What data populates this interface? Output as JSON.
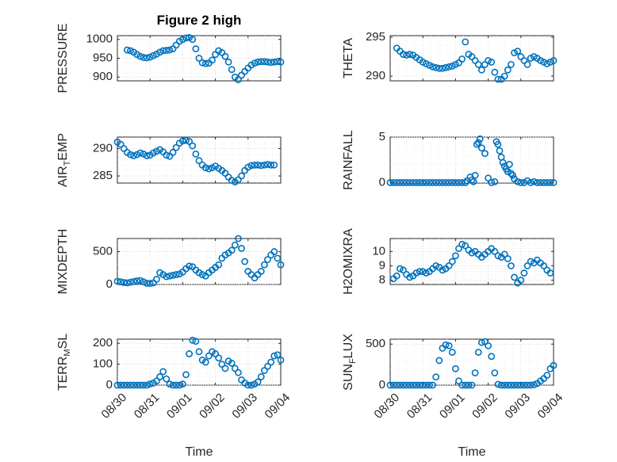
{
  "chart_data": [
    {
      "type": "scatter",
      "title": "Figure 2 high",
      "ylabel": "PRESSURE",
      "xlabel": "",
      "ylim": [
        890,
        1010
      ],
      "yticks": [
        900,
        950,
        1000
      ],
      "xlim": [
        0,
        5
      ],
      "xticks": [
        "08/30",
        "08/31",
        "09/01",
        "09/02",
        "09/03",
        "09/04"
      ],
      "grid": true,
      "color": "#0072BD",
      "series": [
        {
          "x": [
            0.3,
            0.4,
            0.5,
            0.6,
            0.7,
            0.8,
            0.9,
            1.0,
            1.1,
            1.2,
            1.3,
            1.4,
            1.5,
            1.6,
            1.7,
            1.8,
            1.9,
            2.0,
            2.1,
            2.2,
            2.3,
            2.4,
            2.5,
            2.6,
            2.7,
            2.8,
            2.9,
            3.0,
            3.1,
            3.2,
            3.3,
            3.4,
            3.5,
            3.6,
            3.7,
            3.8,
            3.9,
            4.0,
            4.1,
            4.2,
            4.3,
            4.4,
            4.5,
            4.6,
            4.7,
            4.8,
            4.9,
            5.0
          ],
          "y": [
            972,
            970,
            966,
            960,
            955,
            952,
            951,
            953,
            957,
            961,
            966,
            970,
            971,
            972,
            975,
            985,
            995,
            1000,
            1004,
            1005,
            1000,
            975,
            950,
            938,
            936,
            937,
            945,
            960,
            970,
            965,
            955,
            940,
            920,
            900,
            893,
            905,
            915,
            924,
            932,
            937,
            940,
            941,
            941,
            940,
            939,
            940,
            941,
            940
          ]
        }
      ]
    },
    {
      "type": "scatter",
      "title": "",
      "ylabel": "THETA",
      "xlabel": "",
      "ylim": [
        289.4,
        295.2
      ],
      "yticks": [
        290,
        295
      ],
      "xlim": [
        0,
        5
      ],
      "xticks": [
        "08/30",
        "08/31",
        "09/01",
        "09/02",
        "09/03",
        "09/04"
      ],
      "grid": true,
      "color": "#0072BD",
      "series": [
        {
          "x": [
            0.2,
            0.3,
            0.4,
            0.5,
            0.6,
            0.7,
            0.8,
            0.9,
            1.0,
            1.1,
            1.2,
            1.3,
            1.4,
            1.5,
            1.6,
            1.7,
            1.8,
            1.9,
            2.0,
            2.1,
            2.2,
            2.3,
            2.4,
            2.5,
            2.6,
            2.7,
            2.8,
            2.9,
            3.0,
            3.1,
            3.2,
            3.3,
            3.4,
            3.5,
            3.6,
            3.7,
            3.8,
            3.9,
            4.0,
            4.1,
            4.2,
            4.3,
            4.4,
            4.5,
            4.6,
            4.7,
            4.8,
            4.9,
            5.0
          ],
          "y": [
            293.6,
            293.2,
            292.8,
            292.7,
            292.8,
            292.7,
            292.4,
            292.1,
            291.8,
            291.6,
            291.4,
            291.2,
            291.1,
            291.0,
            291.0,
            291.1,
            291.2,
            291.3,
            291.5,
            291.7,
            292.2,
            294.4,
            292.8,
            292.5,
            292.0,
            291.5,
            290.8,
            291.5,
            292.0,
            291.8,
            290.5,
            289.6,
            289.6,
            290.0,
            290.8,
            291.5,
            293.0,
            293.2,
            292.5,
            292.0,
            291.5,
            292.3,
            292.5,
            292.3,
            292.0,
            291.8,
            291.6,
            291.8,
            292.0
          ]
        }
      ]
    },
    {
      "type": "scatter",
      "title": "",
      "ylabel_main": "AIR",
      "ylabel_sub": "T",
      "ylabel_rest": "EMP",
      "xlabel": "",
      "ylim": [
        283.7,
        292.1
      ],
      "yticks": [
        285,
        290
      ],
      "xlim": [
        0,
        5
      ],
      "xticks": [
        "08/30",
        "08/31",
        "09/01",
        "09/02",
        "09/03",
        "09/04"
      ],
      "grid": true,
      "color": "#0072BD",
      "series": [
        {
          "x": [
            0.0,
            0.1,
            0.2,
            0.3,
            0.4,
            0.5,
            0.6,
            0.7,
            0.8,
            0.9,
            1.0,
            1.1,
            1.2,
            1.3,
            1.4,
            1.5,
            1.6,
            1.7,
            1.8,
            1.9,
            2.0,
            2.1,
            2.2,
            2.3,
            2.4,
            2.5,
            2.6,
            2.7,
            2.8,
            2.9,
            3.0,
            3.1,
            3.2,
            3.3,
            3.4,
            3.5,
            3.6,
            3.7,
            3.8,
            3.9,
            4.0,
            4.1,
            4.2,
            4.3,
            4.4,
            4.5,
            4.6,
            4.7,
            4.8
          ],
          "y": [
            291.2,
            290.8,
            290.0,
            289.3,
            288.9,
            288.7,
            288.9,
            289.2,
            289.0,
            288.7,
            288.8,
            289.2,
            289.5,
            289.8,
            289.4,
            288.8,
            288.6,
            289.3,
            290.2,
            291.0,
            291.4,
            291.5,
            291.3,
            290.5,
            289.0,
            287.8,
            287.0,
            286.5,
            286.3,
            286.5,
            286.8,
            286.4,
            286.0,
            285.5,
            284.8,
            284.2,
            283.9,
            284.3,
            285.0,
            286.0,
            286.6,
            286.9,
            287.0,
            287.0,
            286.9,
            287.0,
            287.1,
            287.0,
            287.0
          ]
        }
      ]
    },
    {
      "type": "scatter",
      "title": "",
      "ylabel": "RAINFALL",
      "xlabel": "",
      "ylim": [
        -0.05,
        5.0
      ],
      "yticks": [
        0,
        5
      ],
      "xlim": [
        0,
        5
      ],
      "xticks": [
        "08/30",
        "08/31",
        "09/01",
        "09/02",
        "09/03",
        "09/04"
      ],
      "grid": true,
      "color": "#0072BD",
      "series": [
        {
          "x": [
            0.0,
            0.1,
            0.2,
            0.3,
            0.4,
            0.5,
            0.6,
            0.7,
            0.8,
            0.9,
            1.0,
            1.1,
            1.2,
            1.3,
            1.4,
            1.5,
            1.6,
            1.7,
            1.8,
            1.9,
            2.0,
            2.1,
            2.2,
            2.3,
            2.35,
            2.45,
            2.5,
            2.55,
            2.6,
            2.65,
            2.7,
            2.75,
            2.8,
            2.9,
            3.0,
            3.1,
            3.2,
            3.25,
            3.3,
            3.35,
            3.4,
            3.45,
            3.5,
            3.55,
            3.6,
            3.65,
            3.7,
            3.75,
            3.8,
            3.9,
            4.0,
            4.1,
            4.2,
            4.3,
            4.4,
            4.5,
            4.6,
            4.7,
            4.8,
            4.9,
            5.0
          ],
          "y": [
            0,
            0,
            0,
            0,
            0,
            0,
            0,
            0,
            0,
            0,
            0,
            0,
            0,
            0,
            0,
            0,
            0,
            0,
            0,
            0,
            0,
            0,
            0,
            0,
            0.2,
            0.6,
            0.3,
            0.1,
            0.8,
            4.2,
            4.4,
            4.8,
            3.8,
            3.2,
            0.5,
            0,
            0.1,
            4.5,
            4.2,
            3.5,
            2.8,
            2.2,
            1.8,
            1.5,
            1.2,
            2.0,
            1.0,
            0.8,
            0.4,
            0.1,
            0,
            0,
            0.2,
            0,
            0.1,
            0,
            0,
            0,
            0,
            0,
            0
          ]
        }
      ]
    },
    {
      "type": "scatter",
      "title": "",
      "ylabel": "MIXDEPTH",
      "xlabel": "",
      "ylim": [
        0,
        700
      ],
      "yticks": [
        0,
        500
      ],
      "xlim": [
        0,
        5
      ],
      "xticks": [
        "08/30",
        "08/31",
        "09/01",
        "09/02",
        "09/03",
        "09/04"
      ],
      "grid": true,
      "color": "#0072BD",
      "series": [
        {
          "x": [
            0.0,
            0.1,
            0.2,
            0.3,
            0.4,
            0.5,
            0.6,
            0.7,
            0.8,
            0.9,
            1.0,
            1.1,
            1.2,
            1.3,
            1.4,
            1.5,
            1.6,
            1.7,
            1.8,
            1.9,
            2.0,
            2.1,
            2.2,
            2.3,
            2.4,
            2.5,
            2.6,
            2.7,
            2.8,
            2.9,
            3.0,
            3.1,
            3.2,
            3.3,
            3.4,
            3.5,
            3.6,
            3.7,
            3.8,
            3.9,
            4.0,
            4.1,
            4.2,
            4.3,
            4.4,
            4.5,
            4.6,
            4.7,
            4.8,
            4.9,
            5.0
          ],
          "y": [
            50,
            40,
            30,
            25,
            35,
            45,
            55,
            60,
            40,
            20,
            15,
            25,
            80,
            180,
            150,
            120,
            130,
            140,
            150,
            160,
            190,
            240,
            280,
            270,
            220,
            180,
            150,
            130,
            180,
            220,
            260,
            300,
            400,
            450,
            480,
            520,
            600,
            700,
            550,
            350,
            200,
            150,
            100,
            150,
            200,
            300,
            380,
            450,
            500,
            400,
            300
          ]
        }
      ]
    },
    {
      "type": "scatter",
      "title": "",
      "ylabel": "H2OMIXRA",
      "xlabel": "",
      "ylim": [
        7.7,
        10.9
      ],
      "yticks": [
        8,
        9,
        10
      ],
      "xlim": [
        0,
        5
      ],
      "xticks": [
        "08/30",
        "08/31",
        "09/01",
        "09/02",
        "09/03",
        "09/04"
      ],
      "grid": true,
      "color": "#0072BD",
      "series": [
        {
          "x": [
            0.1,
            0.2,
            0.3,
            0.4,
            0.5,
            0.6,
            0.7,
            0.8,
            0.9,
            1.0,
            1.1,
            1.2,
            1.3,
            1.4,
            1.5,
            1.6,
            1.7,
            1.8,
            1.9,
            2.0,
            2.1,
            2.2,
            2.3,
            2.4,
            2.5,
            2.6,
            2.7,
            2.8,
            2.9,
            3.0,
            3.1,
            3.2,
            3.3,
            3.4,
            3.5,
            3.6,
            3.7,
            3.8,
            3.9,
            4.0,
            4.1,
            4.2,
            4.3,
            4.4,
            4.5,
            4.6,
            4.7,
            4.8,
            4.9
          ],
          "y": [
            8.1,
            8.3,
            8.8,
            8.7,
            8.4,
            8.2,
            8.3,
            8.5,
            8.6,
            8.6,
            8.5,
            8.6,
            8.8,
            9.0,
            8.9,
            8.7,
            8.8,
            9.0,
            9.3,
            9.7,
            10.2,
            10.5,
            10.4,
            10.1,
            9.9,
            10.0,
            9.8,
            9.6,
            9.8,
            10.0,
            10.2,
            10.0,
            9.7,
            9.6,
            9.8,
            9.5,
            9.0,
            8.2,
            7.8,
            8.0,
            8.5,
            9.0,
            9.3,
            9.2,
            9.4,
            9.2,
            9.0,
            8.7,
            8.5
          ]
        }
      ]
    },
    {
      "type": "scatter",
      "title": "",
      "ylabel_main": "TERR",
      "ylabel_sub": "M",
      "ylabel_rest": "SL",
      "xlabel": "Time",
      "ylim": [
        0,
        220
      ],
      "yticks": [
        0,
        100,
        200
      ],
      "xlim": [
        0,
        5
      ],
      "xticks": [
        "08/30",
        "08/31",
        "09/01",
        "09/02",
        "09/03",
        "09/04"
      ],
      "grid": true,
      "color": "#0072BD",
      "series": [
        {
          "x": [
            0.0,
            0.1,
            0.2,
            0.3,
            0.4,
            0.5,
            0.6,
            0.7,
            0.8,
            0.9,
            1.0,
            1.1,
            1.2,
            1.3,
            1.4,
            1.5,
            1.6,
            1.7,
            1.8,
            1.9,
            2.0,
            2.1,
            2.2,
            2.3,
            2.4,
            2.5,
            2.6,
            2.7,
            2.8,
            2.9,
            3.0,
            3.1,
            3.2,
            3.3,
            3.4,
            3.5,
            3.6,
            3.7,
            3.8,
            3.9,
            4.0,
            4.1,
            4.2,
            4.3,
            4.4,
            4.5,
            4.6,
            4.7,
            4.8,
            4.9,
            5.0
          ],
          "y": [
            0,
            0,
            0,
            0,
            0,
            0,
            0,
            0,
            0,
            0,
            5,
            10,
            20,
            40,
            65,
            30,
            5,
            0,
            0,
            0,
            5,
            50,
            150,
            215,
            210,
            160,
            120,
            110,
            140,
            160,
            150,
            130,
            100,
            80,
            115,
            105,
            80,
            60,
            25,
            10,
            0,
            0,
            5,
            15,
            40,
            70,
            90,
            110,
            140,
            145,
            120
          ]
        }
      ]
    },
    {
      "type": "scatter",
      "title": "",
      "ylabel_main": "SUN",
      "ylabel_sub": "F",
      "ylabel_rest": "LUX",
      "xlabel": "Time",
      "ylim": [
        0,
        560
      ],
      "yticks": [
        0,
        500
      ],
      "xlim": [
        0,
        5
      ],
      "xticks": [
        "08/30",
        "08/31",
        "09/01",
        "09/02",
        "09/03",
        "09/04"
      ],
      "grid": true,
      "color": "#0072BD",
      "series": [
        {
          "x": [
            0.0,
            0.1,
            0.2,
            0.3,
            0.4,
            0.5,
            0.6,
            0.7,
            0.8,
            0.9,
            1.0,
            1.1,
            1.2,
            1.3,
            1.4,
            1.5,
            1.6,
            1.7,
            1.8,
            1.9,
            2.0,
            2.1,
            2.2,
            2.3,
            2.4,
            2.5,
            2.6,
            2.7,
            2.8,
            2.9,
            3.0,
            3.1,
            3.2,
            3.3,
            3.4,
            3.5,
            3.6,
            3.7,
            3.8,
            3.9,
            4.0,
            4.1,
            4.2,
            4.3,
            4.4,
            4.5,
            4.6,
            4.7,
            4.8,
            4.9,
            5.0
          ],
          "y": [
            0,
            0,
            0,
            0,
            0,
            0,
            0,
            0,
            0,
            0,
            0,
            0,
            0,
            0,
            100,
            300,
            450,
            490,
            480,
            400,
            200,
            50,
            0,
            0,
            0,
            0,
            150,
            400,
            520,
            530,
            480,
            350,
            150,
            10,
            0,
            0,
            0,
            0,
            0,
            0,
            0,
            0,
            0,
            0,
            5,
            20,
            50,
            80,
            120,
            200,
            240
          ]
        }
      ]
    }
  ]
}
